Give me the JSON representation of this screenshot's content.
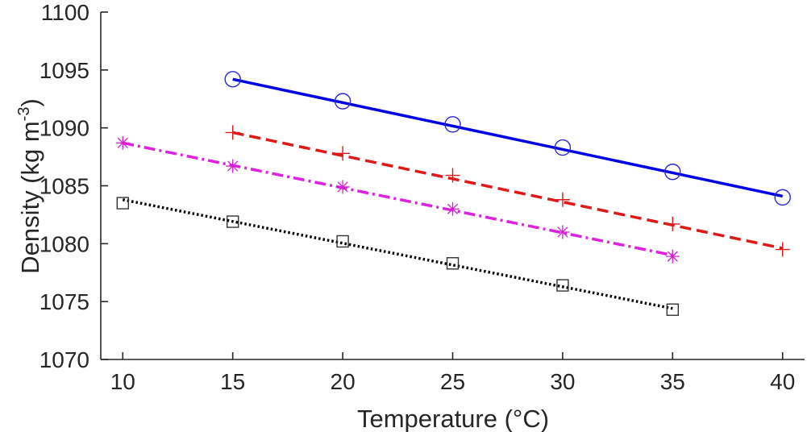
{
  "chart_data": {
    "type": "line",
    "title": "",
    "xlabel": "Temperature (°C)",
    "ylabel": {
      "main": "Density (kg m",
      "exponent": "-3",
      "close": ")"
    },
    "xlim": [
      9,
      41
    ],
    "ylim": [
      1070,
      1100
    ],
    "xticks": [
      10,
      15,
      20,
      25,
      30,
      35,
      40
    ],
    "yticks": [
      1070,
      1075,
      1080,
      1085,
      1090,
      1095,
      1100
    ],
    "grid": false,
    "series": [
      {
        "name": "series-blue-circle",
        "color": "#0000e6",
        "line_style": "solid",
        "marker": "circle",
        "marker_color": "#2a2ad8",
        "x": [
          15,
          20,
          25,
          30,
          35,
          40
        ],
        "values": [
          1094.2,
          1092.3,
          1090.3,
          1088.3,
          1086.2,
          1084.0
        ],
        "fit": [
          [
            15,
            1094.2
          ],
          [
            40,
            1084.1
          ]
        ]
      },
      {
        "name": "series-red-plus",
        "color": "#e01818",
        "line_style": "dashed",
        "marker": "plus",
        "marker_color": "#e01818",
        "x": [
          15,
          20,
          25,
          30,
          35,
          40
        ],
        "values": [
          1089.6,
          1087.8,
          1085.9,
          1083.8,
          1081.7,
          1079.5
        ],
        "fit": [
          [
            15,
            1089.6
          ],
          [
            40,
            1079.6
          ]
        ]
      },
      {
        "name": "series-magenta-star",
        "color": "#e020e0",
        "line_style": "dashdot",
        "marker": "star",
        "marker_color": "#d020d0",
        "x": [
          10,
          15,
          20,
          25,
          30,
          35
        ],
        "values": [
          1088.7,
          1086.7,
          1084.9,
          1083.0,
          1081.0,
          1078.9
        ],
        "fit": [
          [
            10,
            1088.7
          ],
          [
            35,
            1079.0
          ]
        ]
      },
      {
        "name": "series-black-square",
        "color": "#000000",
        "line_style": "dotted",
        "marker": "square",
        "marker_color": "#333333",
        "x": [
          10,
          15,
          20,
          25,
          30,
          35
        ],
        "values": [
          1083.5,
          1081.9,
          1080.2,
          1078.3,
          1076.4,
          1074.3
        ],
        "fit": [
          [
            10,
            1083.8
          ],
          [
            35,
            1074.4
          ]
        ]
      }
    ]
  }
}
